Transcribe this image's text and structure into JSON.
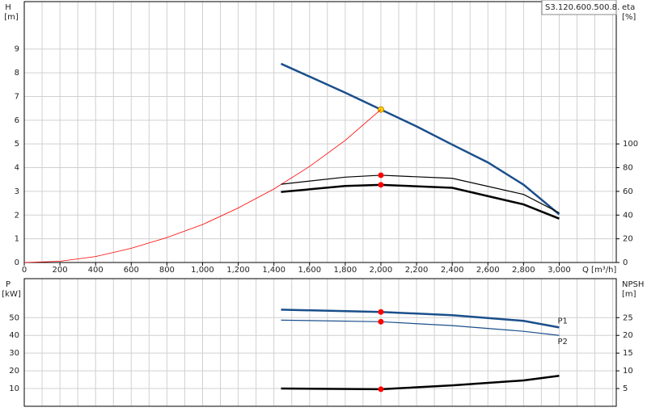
{
  "chart_data": [
    {
      "type": "line",
      "title": "S3.120.600.500.8.",
      "xlabel": "Q [m³/h]",
      "ylabel": "H",
      "yunit": "[m]",
      "y2label": "eta",
      "y2unit": "[%]",
      "xlim": [
        0,
        3320
      ],
      "xminor": 100,
      "xticks": [
        0,
        200,
        400,
        600,
        800,
        {
          "value": 1000,
          "label": "1,000"
        },
        {
          "value": 1200,
          "label": "1,200"
        },
        {
          "value": 1400,
          "label": "1,400"
        },
        {
          "value": 1600,
          "label": "1,600"
        },
        {
          "value": 1800,
          "label": "1,800"
        },
        {
          "value": 2000,
          "label": "2,000"
        },
        {
          "value": 2200,
          "label": "2,200"
        },
        {
          "value": 2400,
          "label": "2,400"
        },
        {
          "value": 2600,
          "label": "2,600"
        },
        {
          "value": 2800,
          "label": "2,800"
        },
        {
          "value": 3000,
          "label": "3,000"
        }
      ],
      "ylim": [
        0,
        11
      ],
      "yticks": [
        0,
        1,
        2,
        3,
        4,
        5,
        6,
        7,
        8,
        9
      ],
      "y2lim": [
        0,
        220
      ],
      "y2ticks": [
        0,
        20,
        40,
        60,
        80,
        100
      ],
      "duty_point": 2000,
      "series": [
        {
          "color": "#1a4f8b",
          "width": 2.5,
          "axis": "y",
          "duty_color": "#ffd700",
          "x": [
            1440,
            1800,
            2000,
            2200,
            2400,
            2600,
            2800,
            3000
          ],
          "values": [
            8.38,
            7.16,
            6.45,
            5.74,
            4.97,
            4.22,
            3.28,
            2.03
          ]
        },
        {
          "color": "#ff0000",
          "width": 0.8,
          "axis": "y",
          "x": [
            0,
            200,
            400,
            600,
            800,
            1000,
            1200,
            1400,
            1600,
            1800,
            2000
          ],
          "values": [
            0,
            0.05,
            0.25,
            0.6,
            1.05,
            1.6,
            2.3,
            3.1,
            4.05,
            5.15,
            6.45
          ]
        },
        {
          "color": "#000000",
          "width": 1.2,
          "axis": "y2",
          "duty_color": "#ff0000",
          "x": [
            1440,
            1800,
            2000,
            2400,
            2800,
            3000
          ],
          "values": [
            66,
            72,
            73.6,
            71,
            57.4,
            41.9
          ]
        },
        {
          "color": "#000000",
          "width": 2.5,
          "axis": "y2",
          "duty_color": "#ff0000",
          "x": [
            1440,
            1800,
            2000,
            2400,
            2800,
            3000
          ],
          "values": [
            59.5,
            64.5,
            65.5,
            63,
            49,
            37
          ]
        }
      ]
    },
    {
      "type": "line",
      "ylabel": "P",
      "yunit": "[kW]",
      "y2label": "NPSH",
      "y2unit": "[m]",
      "xlim": [
        0,
        3320
      ],
      "xminor": 100,
      "ylim": [
        0,
        72
      ],
      "yticks": [
        10,
        20,
        30,
        40,
        50
      ],
      "y2lim": [
        0,
        36
      ],
      "y2ticks": [
        5,
        10,
        15,
        20,
        25
      ],
      "duty_point": 2000,
      "series": [
        {
          "name": "P1",
          "color": "#1a4f8b",
          "width": 2.5,
          "axis": "y",
          "duty_color": "#ff0000",
          "x": [
            1440,
            2000,
            2400,
            2800,
            3000
          ],
          "values": [
            54.5,
            53.2,
            51.4,
            48.2,
            44.5
          ]
        },
        {
          "name": "P2",
          "color": "#1a4f8b",
          "width": 1.2,
          "axis": "y",
          "duty_color": "#ff0000",
          "x": [
            1440,
            2000,
            2400,
            2800,
            3000
          ],
          "values": [
            48.6,
            47.7,
            45.5,
            42.3,
            40
          ]
        },
        {
          "color": "#000000",
          "width": 2.5,
          "axis": "y2",
          "duty_color": "#ff0000",
          "x": [
            1440,
            2000,
            2400,
            2800,
            3000
          ],
          "values": [
            5.0,
            4.8,
            5.9,
            7.3,
            8.6
          ]
        }
      ]
    }
  ]
}
